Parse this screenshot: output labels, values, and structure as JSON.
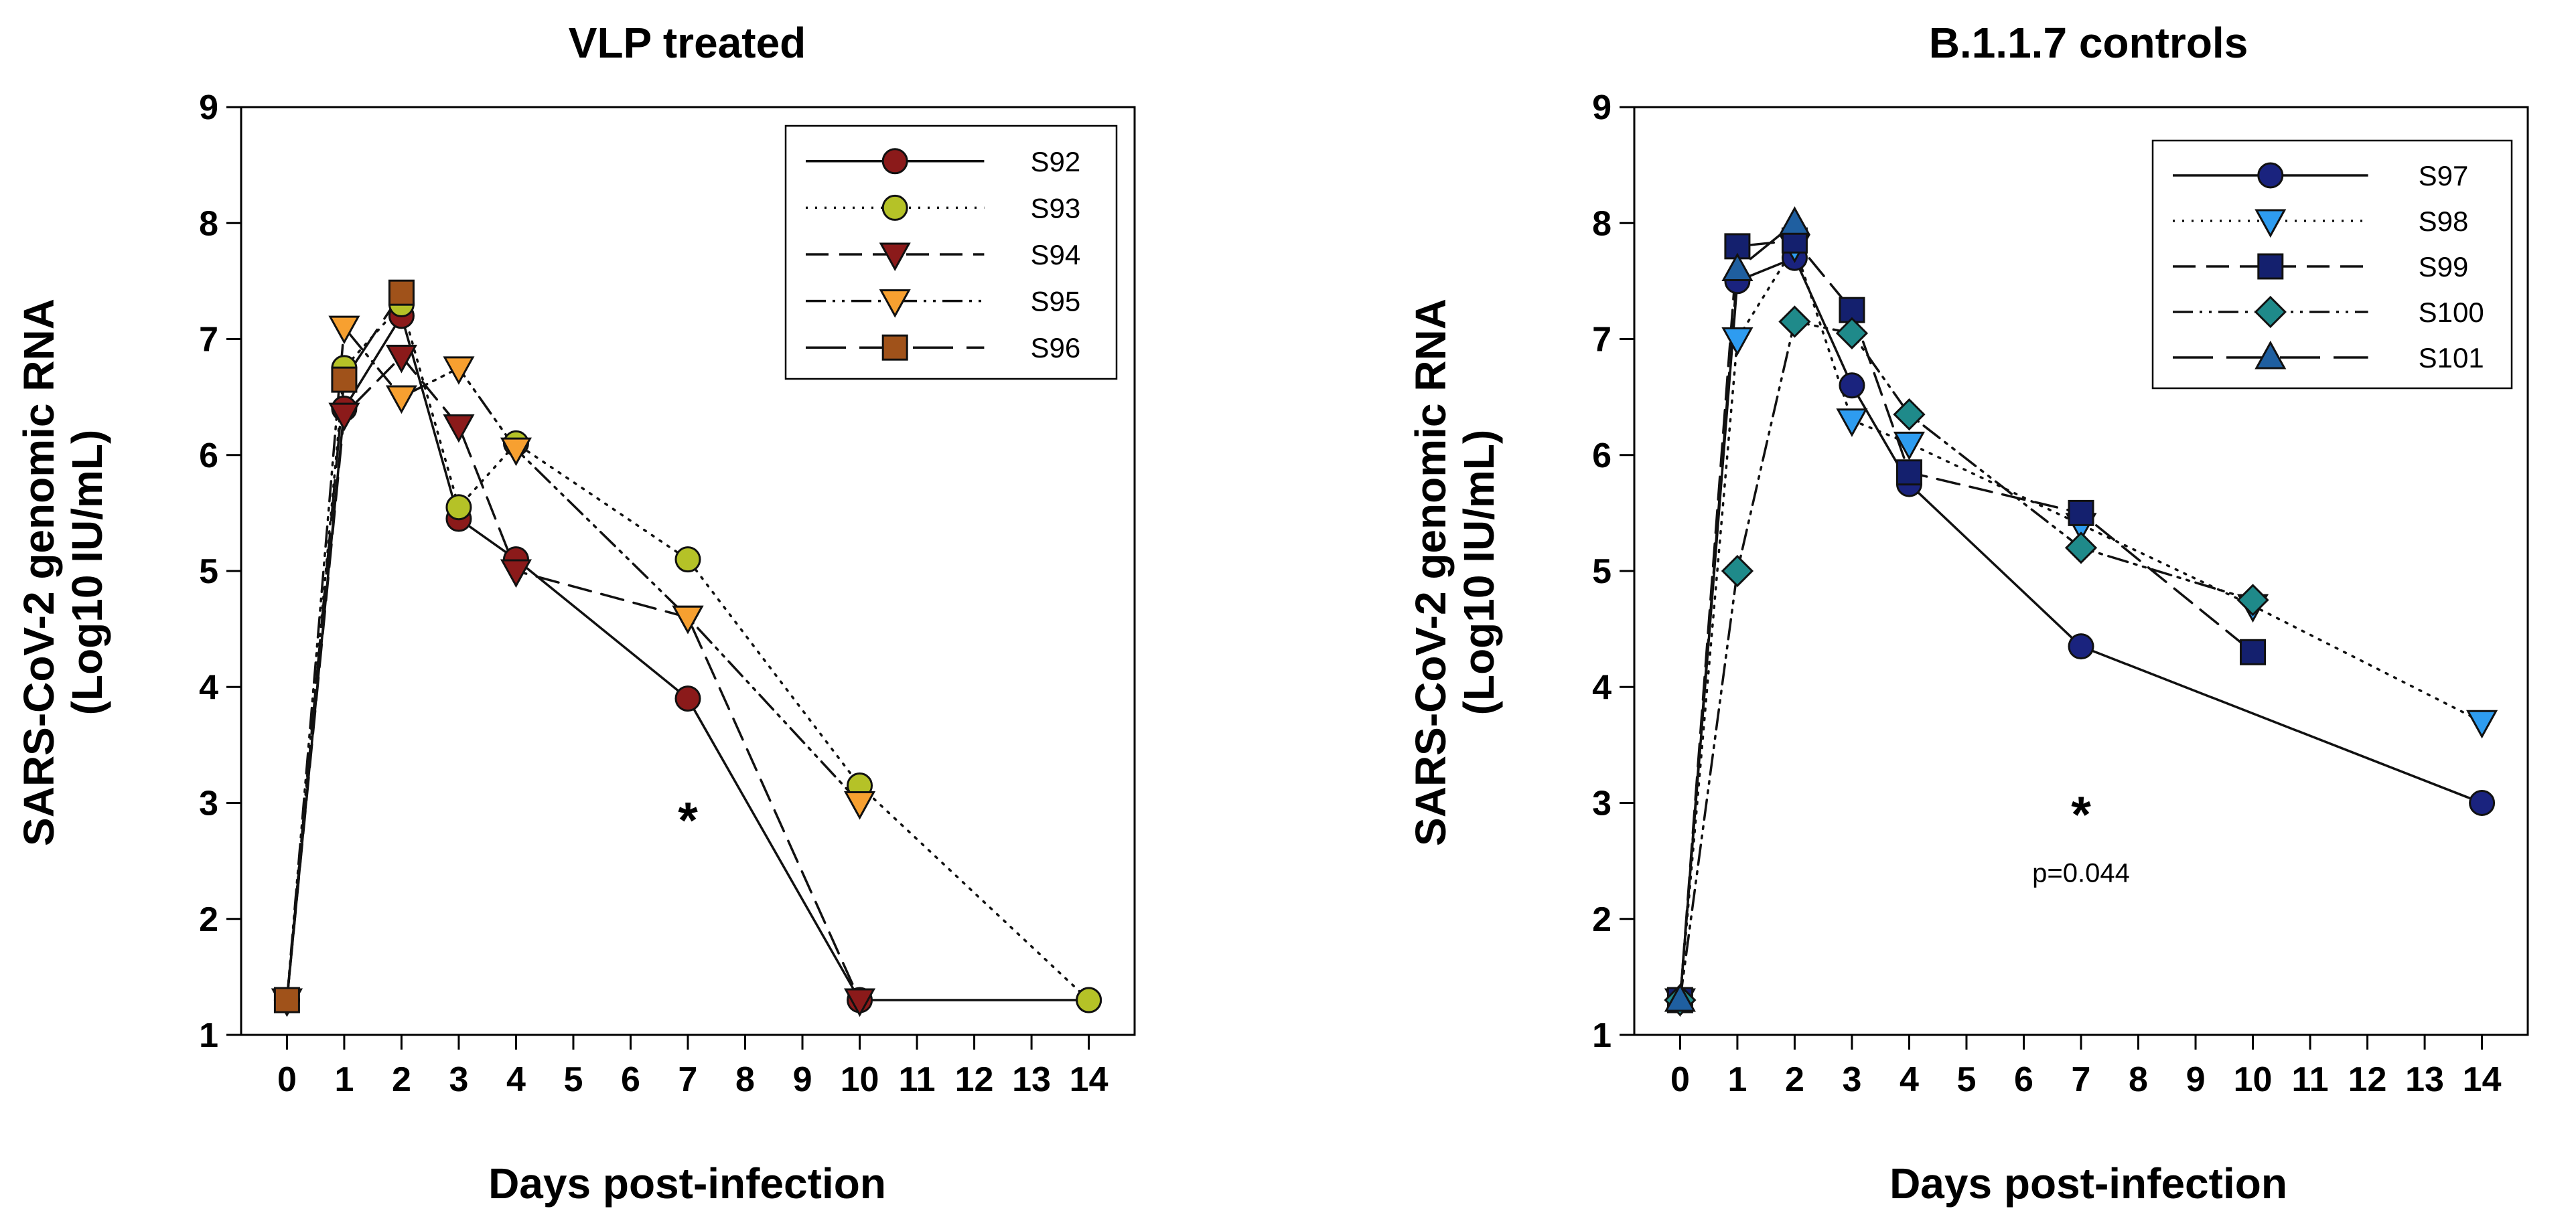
{
  "chart_data": [
    {
      "type": "line",
      "title": "VLP treated",
      "xlabel": "Days post-infection",
      "ylabel_line1": "SARS-CoV-2 genomic RNA",
      "ylabel_line2": "(Log10 IU/mL)",
      "xlim": [
        -0.8,
        14.8
      ],
      "ylim": [
        1,
        9
      ],
      "xticks": [
        0,
        1,
        2,
        3,
        4,
        5,
        6,
        7,
        8,
        9,
        10,
        11,
        12,
        13,
        14
      ],
      "yticks": [
        1,
        2,
        3,
        4,
        5,
        6,
        7,
        8,
        9
      ],
      "legend_position": "top-right",
      "annotations": [
        {
          "text": "*",
          "x": 7,
          "y": 2.7,
          "size": "large"
        }
      ],
      "series": [
        {
          "name": "S92",
          "marker": "circle",
          "color": "#8B1A1A",
          "dash": "solid",
          "x": [
            0,
            1,
            2,
            3,
            4,
            7,
            10,
            14
          ],
          "y": [
            1.3,
            6.4,
            7.2,
            5.45,
            5.1,
            3.9,
            1.3,
            1.3
          ]
        },
        {
          "name": "S93",
          "marker": "circle",
          "color": "#B5C227",
          "dash": "dotted",
          "x": [
            0,
            1,
            2,
            3,
            4,
            7,
            10,
            14
          ],
          "y": [
            1.3,
            6.75,
            7.3,
            5.55,
            6.1,
            5.1,
            3.15,
            1.3
          ]
        },
        {
          "name": "S94",
          "marker": "triangle-down",
          "color": "#8B1A1A",
          "dash": "dashed",
          "x": [
            0,
            1,
            2,
            3,
            4,
            7,
            10
          ],
          "y": [
            1.3,
            6.35,
            6.85,
            6.25,
            5.0,
            4.6,
            1.3
          ]
        },
        {
          "name": "S95",
          "marker": "triangle-down",
          "color": "#F7A030",
          "dash": "dashdotdot",
          "x": [
            0,
            1,
            2,
            3,
            4,
            7,
            10
          ],
          "y": [
            1.3,
            7.1,
            6.5,
            6.75,
            6.05,
            4.6,
            3.0
          ]
        },
        {
          "name": "S96",
          "marker": "square",
          "color": "#A0521A",
          "dash": "longdash",
          "x": [
            0,
            1,
            2
          ],
          "y": [
            1.3,
            6.65,
            7.4
          ]
        }
      ]
    },
    {
      "type": "line",
      "title": "B.1.1.7 controls",
      "xlabel": "Days post-infection",
      "ylabel_line1": "SARS-CoV-2 genomic RNA",
      "ylabel_line2": "(Log10 IU/mL)",
      "xlim": [
        -0.8,
        14.8
      ],
      "ylim": [
        1,
        9
      ],
      "xticks": [
        0,
        1,
        2,
        3,
        4,
        5,
        6,
        7,
        8,
        9,
        10,
        11,
        12,
        13,
        14
      ],
      "yticks": [
        1,
        2,
        3,
        4,
        5,
        6,
        7,
        8,
        9
      ],
      "legend_position": "top-right",
      "annotations": [
        {
          "text": "*",
          "x": 7,
          "y": 2.75,
          "size": "large"
        },
        {
          "text": "p=0.044",
          "x": 7,
          "y": 2.32,
          "size": "small"
        }
      ],
      "series": [
        {
          "name": "S97",
          "marker": "circle",
          "color": "#1A237E",
          "dash": "solid",
          "x": [
            0,
            1,
            2,
            3,
            4,
            7,
            14
          ],
          "y": [
            1.3,
            7.5,
            7.7,
            6.6,
            5.75,
            4.35,
            3.0
          ]
        },
        {
          "name": "S98",
          "marker": "triangle-down",
          "color": "#2E9CF0",
          "dash": "dotted",
          "x": [
            0,
            1,
            2,
            3,
            4,
            7,
            10,
            14
          ],
          "y": [
            1.3,
            7.0,
            7.8,
            6.3,
            6.1,
            5.4,
            4.7,
            3.7
          ]
        },
        {
          "name": "S99",
          "marker": "square",
          "color": "#14206E",
          "dash": "dashed",
          "x": [
            0,
            1,
            2,
            3,
            4,
            7,
            10
          ],
          "y": [
            1.3,
            7.8,
            7.85,
            7.25,
            5.85,
            5.5,
            4.3
          ]
        },
        {
          "name": "S100",
          "marker": "diamond",
          "color": "#1F8A8A",
          "dash": "dashdotdot",
          "x": [
            0,
            1,
            2,
            3,
            4,
            7,
            10
          ],
          "y": [
            1.3,
            5.0,
            7.15,
            7.05,
            6.35,
            5.2,
            4.75
          ]
        },
        {
          "name": "S101",
          "marker": "triangle-up",
          "color": "#1F5FA0",
          "dash": "longdash",
          "x": [
            0,
            1,
            2
          ],
          "y": [
            1.3,
            7.6,
            8.0
          ]
        }
      ]
    }
  ]
}
